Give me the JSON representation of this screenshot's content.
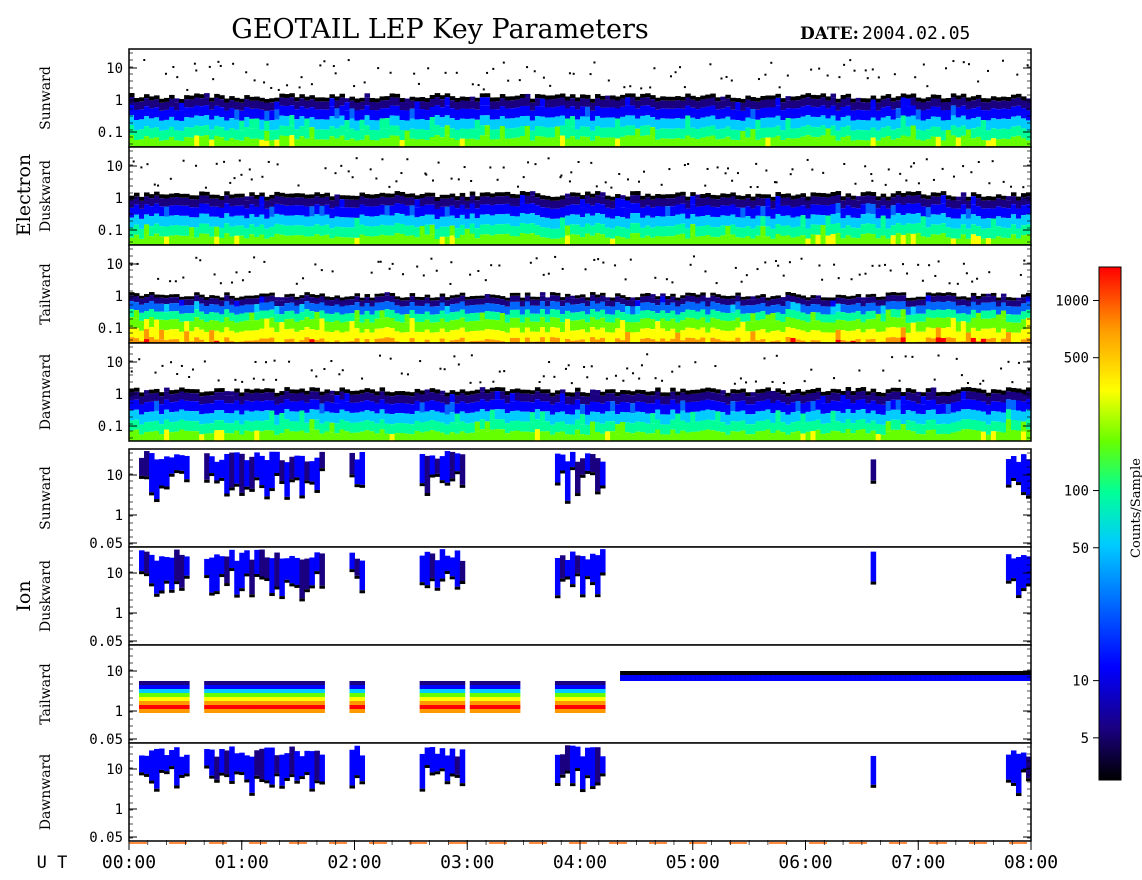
{
  "title": "GEOTAIL LEP Key Parameters",
  "date_label": "DATE:",
  "date_value": "2004.02.05",
  "ut_label": "U T",
  "colors": {
    "colormap": [
      "#000000",
      "#1a0080",
      "#0000ff",
      "#0066ff",
      "#00ccff",
      "#00ff99",
      "#66ff00",
      "#ffff00",
      "#ff9900",
      "#ff0000"
    ]
  },
  "chart_data": {
    "type": "heatmap",
    "x": {
      "ticks": [
        "00:00",
        "01:00",
        "02:00",
        "03:00",
        "04:00",
        "05:00",
        "06:00",
        "07:00",
        "08:00"
      ],
      "range": [
        "00:00",
        "08:00"
      ]
    },
    "groups": [
      {
        "label": "Electron",
        "panels": [
          {
            "label": "Sunward",
            "yticks": [
              "10",
              "1",
              "0.1"
            ],
            "scale": "log"
          },
          {
            "label": "Duskward",
            "yticks": [
              "10",
              "1",
              "0.1"
            ],
            "scale": "log"
          },
          {
            "label": "Tailward",
            "yticks": [
              "10",
              "1",
              "0.1"
            ],
            "scale": "log"
          },
          {
            "label": "Dawnward",
            "yticks": [
              "10",
              "1",
              "0.1"
            ],
            "scale": "log"
          }
        ]
      },
      {
        "label": "Ion",
        "panels": [
          {
            "label": "Sunward",
            "yticks": [
              "10",
              "1",
              "0.05"
            ],
            "scale": "log"
          },
          {
            "label": "Duskward",
            "yticks": [
              "10",
              "1",
              "0.05"
            ],
            "scale": "log"
          },
          {
            "label": "Tailward",
            "yticks": [
              "10",
              "1",
              "0.05"
            ],
            "scale": "log"
          },
          {
            "label": "Dawnward",
            "yticks": [
              "10",
              "1",
              "0.05"
            ],
            "scale": "log"
          }
        ]
      }
    ],
    "colorbar": {
      "label": "Counts/Sample",
      "scale": "log",
      "range": [
        3,
        1500
      ],
      "ticks": [
        {
          "label": "1000",
          "value": 1000
        },
        {
          "label": "500",
          "value": 500
        },
        {
          "label": "100",
          "value": 100
        },
        {
          "label": "50",
          "value": 50
        },
        {
          "label": "10",
          "value": 10
        },
        {
          "label": "5",
          "value": 5
        }
      ]
    }
  }
}
